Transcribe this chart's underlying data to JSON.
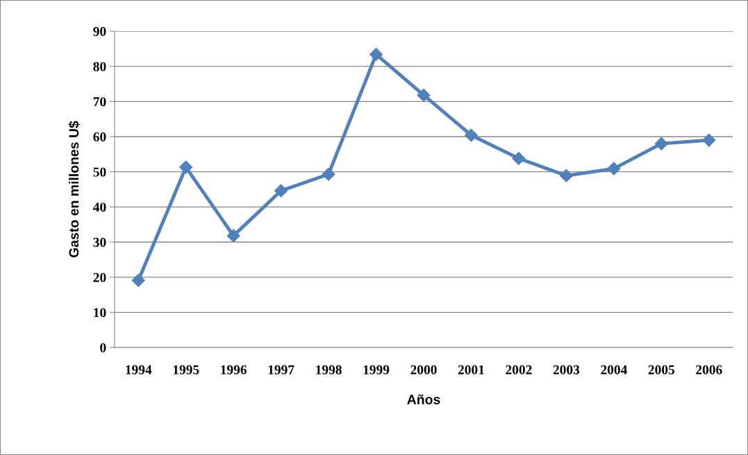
{
  "chart_data": {
    "type": "line",
    "xlabel": "Años",
    "ylabel": "Gasto en millones U$",
    "categories": [
      "1994",
      "1995",
      "1996",
      "1997",
      "1998",
      "1999",
      "2000",
      "2001",
      "2002",
      "2003",
      "2004",
      "2005",
      "2006"
    ],
    "series": [
      {
        "color": "#4f81bd",
        "values": [
          19.1,
          51.3,
          31.8,
          44.6,
          49.3,
          83.4,
          71.8,
          60.4,
          53.8,
          48.9,
          50.9,
          58,
          59
        ]
      }
    ],
    "ylim": [
      0,
      90
    ],
    "yticks": [
      0,
      10,
      20,
      30,
      40,
      50,
      60,
      70,
      80,
      90
    ],
    "grid": "y",
    "marker": "diamond",
    "line_style": "solid"
  }
}
